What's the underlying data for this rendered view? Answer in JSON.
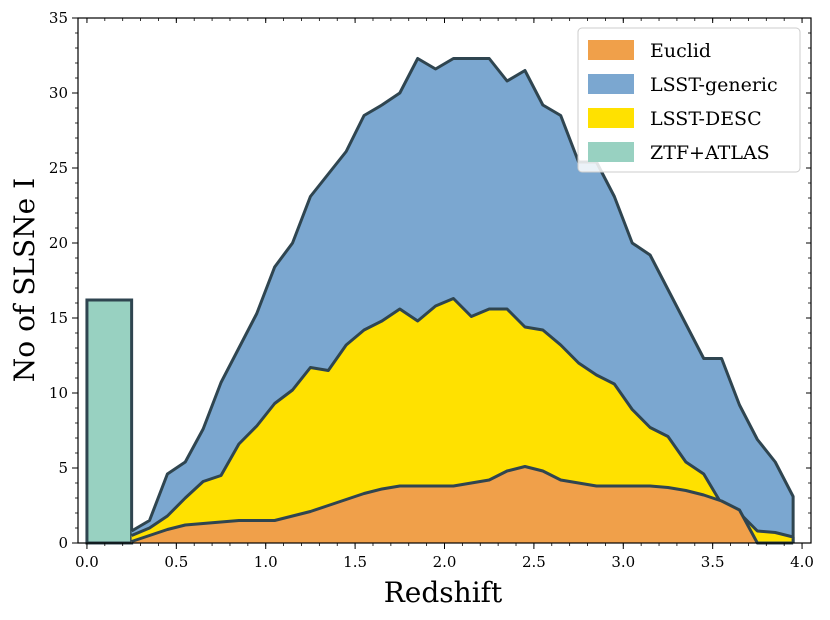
{
  "chart_data": {
    "type": "area",
    "xlabel": "Redshift",
    "ylabel": "No of SLSNe I",
    "xlim": [
      -0.05,
      4.05
    ],
    "ylim": [
      0,
      35
    ],
    "x_ticks": [
      "0.0",
      "0.5",
      "1.0",
      "1.5",
      "2.0",
      "2.5",
      "3.0",
      "3.5",
      "4.0"
    ],
    "y_ticks": [
      "0",
      "5",
      "10",
      "15",
      "20",
      "25",
      "30",
      "35"
    ],
    "grid": false,
    "legend_position": "top-right",
    "x": [
      0.25,
      0.35,
      0.45,
      0.55,
      0.65,
      0.75,
      0.85,
      0.95,
      1.05,
      1.15,
      1.25,
      1.35,
      1.45,
      1.55,
      1.65,
      1.75,
      1.85,
      1.95,
      2.05,
      2.15,
      2.25,
      2.35,
      2.45,
      2.55,
      2.65,
      2.75,
      2.85,
      2.95,
      3.05,
      3.15,
      3.25,
      3.35,
      3.45,
      3.55,
      3.65,
      3.75,
      3.85,
      3.95
    ],
    "series": [
      {
        "name": "Euclid",
        "color": "#f0a04a",
        "values": [
          0.1,
          0.5,
          0.9,
          1.2,
          1.3,
          1.4,
          1.5,
          1.5,
          1.5,
          1.8,
          2.1,
          2.5,
          2.9,
          3.3,
          3.6,
          3.8,
          3.8,
          3.8,
          3.8,
          4.0,
          4.2,
          4.8,
          5.1,
          4.8,
          4.2,
          4.0,
          3.8,
          3.8,
          3.8,
          3.8,
          3.7,
          3.5,
          3.2,
          2.8,
          2.2,
          0.0,
          0.0,
          0.0
        ]
      },
      {
        "name": "LSST-DESC",
        "color": "#ffe100",
        "values": [
          0.5,
          1.0,
          1.8,
          3.0,
          4.1,
          4.5,
          6.6,
          7.8,
          9.3,
          10.2,
          11.7,
          11.5,
          13.2,
          14.2,
          14.8,
          15.6,
          14.8,
          15.8,
          16.3,
          15.1,
          15.6,
          15.6,
          14.4,
          14.2,
          13.2,
          12.0,
          11.2,
          10.6,
          8.9,
          7.7,
          7.1,
          5.4,
          4.6,
          2.6,
          2.0,
          0.8,
          0.7,
          0.4
        ]
      },
      {
        "name": "LSST-generic",
        "color": "#7ba7d0",
        "values": [
          0.8,
          1.5,
          4.6,
          5.4,
          7.6,
          10.7,
          13.0,
          15.3,
          18.4,
          20.0,
          23.1,
          24.6,
          26.1,
          28.5,
          29.2,
          30.0,
          32.3,
          31.6,
          32.3,
          32.3,
          32.3,
          30.8,
          31.5,
          29.2,
          28.5,
          25.4,
          25.4,
          23.1,
          20.0,
          19.2,
          16.9,
          14.6,
          12.3,
          12.3,
          9.2,
          6.9,
          5.4,
          3.1
        ]
      }
    ],
    "bar": {
      "name": "ZTF+ATLAS",
      "color": "#98d1c1",
      "x_range": [
        0.0,
        0.25
      ],
      "value": 16.2
    },
    "legend": [
      "Euclid",
      "LSST-generic",
      "LSST-DESC",
      "ZTF+ATLAS"
    ],
    "line_color": "#2f4550"
  }
}
